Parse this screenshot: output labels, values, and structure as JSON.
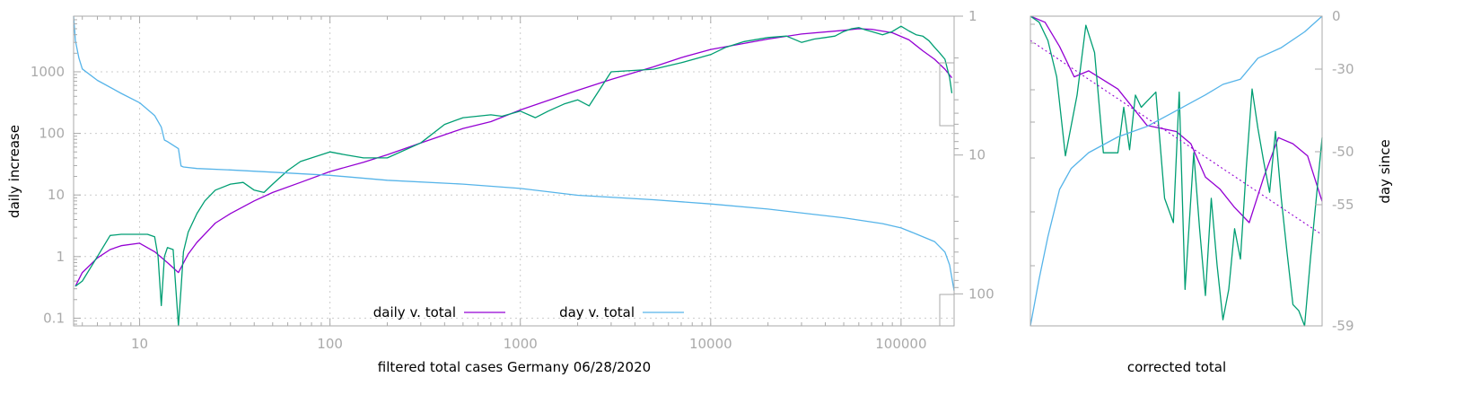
{
  "colors": {
    "daily_fit": "#9400d3",
    "daily_raw": "#009e73",
    "day_line": "#56b4e9",
    "axis": "#aaaaaa"
  },
  "chart_data": [
    {
      "type": "line",
      "xlabel": "filtered total cases Germany 06/28/2020",
      "ylabel": "daily increase",
      "y2label": "",
      "x_scale": "log",
      "y_scale": "log",
      "y2_scale": "log",
      "xlim": [
        4.5,
        190000
      ],
      "ylim": [
        0.075,
        8000
      ],
      "y2lim": [
        1,
        170
      ],
      "x_ticks": [
        10,
        100,
        1000,
        10000,
        100000
      ],
      "x_tick_labels": [
        "10",
        "100",
        "1000",
        "10000",
        "100000"
      ],
      "y_ticks": [
        0.1,
        1,
        10,
        100,
        1000
      ],
      "y_tick_labels": [
        "0.1",
        "1",
        "10",
        "100",
        "1000"
      ],
      "y2_ticks": [
        1,
        10,
        100
      ],
      "y2_tick_labels": [
        "1",
        "10",
        "100"
      ],
      "grid": true,
      "legend": "bottom-center",
      "series": [
        {
          "name": "daily v. total",
          "axis": "y",
          "x": [
            4.6,
            5,
            6,
            7,
            8,
            10,
            12,
            14,
            16,
            18,
            20,
            25,
            30,
            40,
            50,
            70,
            100,
            150,
            200,
            300,
            500,
            700,
            1000,
            2000,
            3000,
            5000,
            7000,
            10000,
            20000,
            30000,
            50000,
            60000,
            70000,
            90000,
            110000,
            130000,
            150000,
            170000,
            185000
          ],
          "y": [
            0.33,
            0.55,
            0.95,
            1.3,
            1.5,
            1.65,
            1.2,
            0.8,
            0.55,
            1.1,
            1.7,
            3.5,
            5,
            8,
            11,
            16,
            24,
            34,
            45,
            70,
            120,
            155,
            240,
            500,
            750,
            1200,
            1700,
            2300,
            3400,
            4100,
            4700,
            5000,
            4900,
            4300,
            3300,
            2200,
            1600,
            1100,
            800
          ]
        },
        {
          "name": "",
          "axis": "y",
          "x": [
            4.6,
            5,
            6,
            7,
            8,
            10,
            11,
            12,
            12.5,
            13,
            13.5,
            14,
            15,
            16,
            16.5,
            17,
            18,
            20,
            22,
            25,
            30,
            35,
            40,
            45,
            50,
            60,
            70,
            100,
            120,
            150,
            200,
            300,
            400,
            500,
            700,
            800,
            1000,
            1200,
            1400,
            1700,
            2000,
            2300,
            3000,
            5000,
            7000,
            10000,
            12000,
            15000,
            20000,
            25000,
            30000,
            35000,
            40000,
            45000,
            50000,
            55000,
            60000,
            65000,
            70000,
            80000,
            90000,
            100000,
            110000,
            120000,
            130000,
            140000,
            150000,
            160000,
            170000,
            180000,
            185000
          ],
          "y": [
            0.33,
            0.4,
            1.0,
            2.2,
            2.3,
            2.3,
            2.3,
            2.1,
            1.0,
            0.16,
            1.0,
            1.4,
            1.3,
            0.07,
            0.3,
            1.2,
            2.5,
            5,
            8,
            12,
            15,
            16,
            12,
            11,
            15,
            25,
            35,
            50,
            45,
            40,
            40,
            70,
            140,
            180,
            200,
            190,
            230,
            180,
            230,
            300,
            350,
            280,
            1000,
            1100,
            1400,
            1900,
            2500,
            3100,
            3600,
            3800,
            3000,
            3400,
            3600,
            3800,
            4500,
            5000,
            5200,
            4800,
            4500,
            4000,
            4500,
            5500,
            4600,
            4000,
            3800,
            3200,
            2500,
            2000,
            1600,
            800,
            450
          ]
        },
        {
          "name": "day v. total",
          "axis": "y2",
          "x": [
            4.5,
            4.6,
            4.8,
            5,
            6,
            8,
            10,
            12,
            13,
            13.5,
            14,
            15,
            16,
            16.5,
            17,
            20,
            30,
            50,
            100,
            200,
            500,
            1000,
            2000,
            5000,
            10000,
            20000,
            50000,
            80000,
            100000,
            120000,
            150000,
            170000,
            180000,
            190000
          ],
          "y2": [
            1,
            1.5,
            2,
            2.4,
            2.9,
            3.6,
            4.2,
            5.2,
            6.3,
            7.8,
            8,
            8.5,
            9,
            12,
            12.2,
            12.5,
            12.8,
            13.3,
            14,
            15.2,
            16.2,
            17.4,
            19.5,
            21,
            22.5,
            24.5,
            28.3,
            31.2,
            33.5,
            37,
            42,
            50,
            62,
            95
          ]
        }
      ]
    },
    {
      "type": "line",
      "xlabel": "corrected total",
      "y2label": "day since",
      "y2_ticks": [
        0,
        -30,
        -50,
        -55,
        -59
      ],
      "y2_tick_labels": [
        "0",
        "-30",
        "-50",
        "-55",
        "-59"
      ],
      "ylim": [
        -59,
        0
      ],
      "series": [
        {
          "name": "",
          "x": [
            0,
            0.05,
            0.1,
            0.15,
            0.2,
            0.3,
            0.4,
            0.5,
            0.55,
            0.6,
            0.65,
            0.7,
            0.75,
            0.8,
            0.85,
            0.9,
            0.95,
            1.0
          ],
          "y": [
            0,
            -2,
            -10,
            -20,
            -18,
            -24,
            -36,
            -38,
            -42,
            -53,
            -57,
            -63,
            -68,
            -53,
            -40,
            -42,
            -46,
            -61
          ]
        },
        {
          "name": "",
          "x": [
            0,
            0.03,
            0.06,
            0.09,
            0.12,
            0.16,
            0.19,
            0.22,
            0.25,
            0.3,
            0.32,
            0.34,
            0.36,
            0.38,
            0.4,
            0.43,
            0.46,
            0.49,
            0.51,
            0.53,
            0.56,
            0.58,
            0.6,
            0.62,
            0.64,
            0.66,
            0.68,
            0.7,
            0.72,
            0.74,
            0.76,
            0.78,
            0.8,
            0.82,
            0.84,
            0.86,
            0.88,
            0.9,
            0.92,
            0.94,
            0.96,
            1.0
          ],
          "y": [
            0,
            -2,
            -8,
            -20,
            -46,
            -26,
            -3,
            -12,
            -45,
            -45,
            -30,
            -44,
            -26,
            -30,
            -28,
            -25,
            -60,
            -68,
            -25,
            -90,
            -45,
            -70,
            -92,
            -60,
            -82,
            -100,
            -90,
            -70,
            -80,
            -50,
            -24,
            -37,
            -48,
            -58,
            -38,
            -60,
            -78,
            -95,
            -97,
            -102,
            -80,
            -40
          ]
        },
        {
          "name": "",
          "x": [
            0,
            0.03,
            0.06,
            0.1,
            0.14,
            0.2,
            0.3,
            0.4,
            0.5,
            0.6,
            0.66,
            0.72,
            0.78,
            0.86,
            0.94,
            1.0
          ],
          "y": [
            -59,
            -50,
            -42,
            -33,
            -29,
            -26,
            -23,
            -21,
            -18,
            -15,
            -13,
            -12,
            -8,
            -6,
            -3,
            0
          ]
        },
        {
          "name": "",
          "x": [
            0,
            1
          ],
          "y": [
            -8,
            -72
          ]
        }
      ]
    }
  ]
}
